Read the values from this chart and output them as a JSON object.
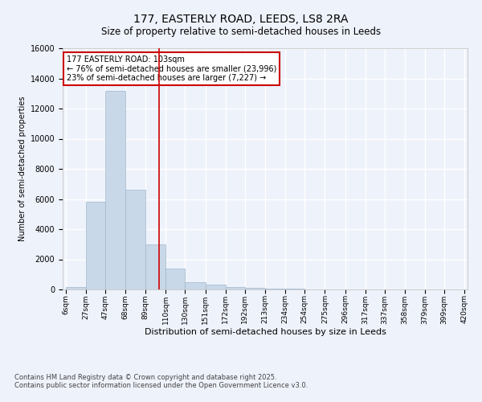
{
  "title": "177, EASTERLY ROAD, LEEDS, LS8 2RA",
  "subtitle": "Size of property relative to semi-detached houses in Leeds",
  "xlabel": "Distribution of semi-detached houses by size in Leeds",
  "ylabel": "Number of semi-detached properties",
  "annotation_title": "177 EASTERLY ROAD: 103sqm",
  "annotation_line1": "← 76% of semi-detached houses are smaller (23,996)",
  "annotation_line2": "23% of semi-detached houses are larger (7,227) →",
  "property_size_sqm": 103,
  "footer_line1": "Contains HM Land Registry data © Crown copyright and database right 2025.",
  "footer_line2": "Contains public sector information licensed under the Open Government Licence v3.0.",
  "bar_edges": [
    6,
    27,
    47,
    68,
    89,
    110,
    130,
    151,
    172,
    192,
    213,
    234,
    254,
    275,
    296,
    317,
    337,
    358,
    379,
    399,
    420
  ],
  "bar_values": [
    160,
    5800,
    13200,
    6600,
    3000,
    1400,
    480,
    300,
    170,
    100,
    60,
    30,
    20,
    10,
    5,
    3,
    2,
    1,
    1,
    0
  ],
  "bar_color": "#c8d8e8",
  "bar_edge_color": "#a0b8cc",
  "property_line_color": "#cc0000",
  "annotation_box_color": "#ffffff",
  "annotation_box_edge": "#cc0000",
  "background_color": "#eef2fb",
  "grid_color": "#ffffff",
  "ylim": [
    0,
    16000
  ],
  "yticks": [
    0,
    2000,
    4000,
    6000,
    8000,
    10000,
    12000,
    14000,
    16000
  ]
}
